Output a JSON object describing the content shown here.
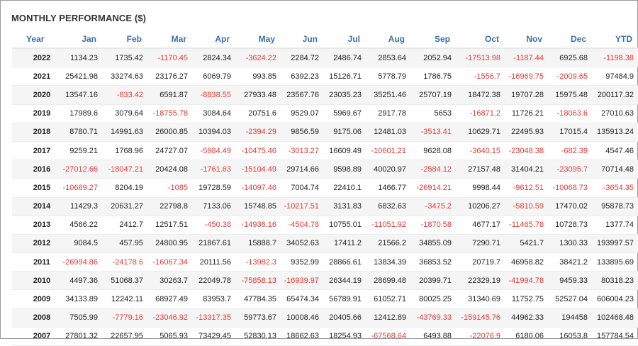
{
  "title": "MONTHLY PERFORMANCE ($)",
  "colors": {
    "negative": "#e53935",
    "header": "#3a6fb0"
  },
  "columns": [
    "Year",
    "Jan",
    "Feb",
    "Mar",
    "Apr",
    "May",
    "Jun",
    "Jul",
    "Aug",
    "Sep",
    "Oct",
    "Nov",
    "Dec",
    "YTD"
  ],
  "rows": [
    [
      "2022",
      "1134.23",
      "1735.42",
      "-1170.45",
      "2824.34",
      "-3624.22",
      "2284.72",
      "2486.74",
      "2853.64",
      "2052.94",
      "-17513.98",
      "-1187.44",
      "6925.68",
      "-1198.38"
    ],
    [
      "2021",
      "25421.98",
      "33274.63",
      "23176.27",
      "6069.79",
      "993.85",
      "6392.23",
      "15126.71",
      "5778.79",
      "1786.75",
      "-1556.7",
      "-16969.75",
      "-2009.65",
      "97484.9"
    ],
    [
      "2020",
      "13547.16",
      "-833.42",
      "6591.87",
      "-8838.55",
      "27933.48",
      "23567.76",
      "23035.23",
      "35251.46",
      "25707.19",
      "18472.38",
      "19707.28",
      "15975.48",
      "200117.32"
    ],
    [
      "2019",
      "17989.6",
      "3079.64",
      "-18755.78",
      "3084.64",
      "20751.6",
      "9529.07",
      "5969.67",
      "2917.78",
      "5653",
      "-16871.2",
      "11726.21",
      "-18063.6",
      "27010.63"
    ],
    [
      "2018",
      "8780.71",
      "14991.63",
      "26000.85",
      "10394.03",
      "-2394.29",
      "9856.59",
      "9175.06",
      "12481.03",
      "-3513.41",
      "10629.71",
      "22495.93",
      "17015.4",
      "135913.24"
    ],
    [
      "2017",
      "9259.21",
      "1768.96",
      "24727.07",
      "-5984.49",
      "-10475.46",
      "-3013.27",
      "16609.49",
      "-10601.21",
      "9628.08",
      "-3640.15",
      "-23048.38",
      "-682.39",
      "4547.46"
    ],
    [
      "2016",
      "-27012.66",
      "-18047.21",
      "20424.08",
      "-1761.63",
      "-15104.49",
      "29714.66",
      "9598.89",
      "40020.97",
      "-2584.12",
      "27157.48",
      "31404.21",
      "-23095.7",
      "70714.48"
    ],
    [
      "2015",
      "-10689.27",
      "8204.19",
      "-1085",
      "19728.59",
      "-14097.46",
      "7004.74",
      "22410.1",
      "1466.77",
      "-26914.21",
      "9998.44",
      "-9612.51",
      "-10068.73",
      "-3654.35"
    ],
    [
      "2014",
      "11429.3",
      "20631.27",
      "22798.8",
      "7133.06",
      "15748.85",
      "-10217.51",
      "3131.83",
      "6832.63",
      "-3475.2",
      "10206.27",
      "-5810.59",
      "17470.02",
      "95878.73"
    ],
    [
      "2013",
      "4566.22",
      "2412.7",
      "12517.51",
      "-450.38",
      "-14936.16",
      "-4504.78",
      "10755.01",
      "-11051.92",
      "-1870.58",
      "4677.17",
      "-11465.78",
      "10728.73",
      "1377.74"
    ],
    [
      "2012",
      "9084.5",
      "457.95",
      "24800.95",
      "21867.61",
      "15888.7",
      "34052.63",
      "17411.2",
      "21566.2",
      "34855.09",
      "7290.71",
      "5421.7",
      "1300.33",
      "193997.57"
    ],
    [
      "2011",
      "-26994.86",
      "-24178.6",
      "-16067.34",
      "20111.56",
      "-13982.3",
      "9352.99",
      "28866.61",
      "13834.39",
      "36853.52",
      "20719.7",
      "46958.82",
      "38421.2",
      "133895.69"
    ],
    [
      "2010",
      "4497.36",
      "51068.37",
      "30263.7",
      "22049.78",
      "-75858.13",
      "-16939.97",
      "26344.19",
      "28699.48",
      "20399.71",
      "22329.19",
      "-41994.78",
      "9459.33",
      "80318.23"
    ],
    [
      "2009",
      "34133.89",
      "12242.11",
      "68927.49",
      "83953.7",
      "47784.35",
      "65474.34",
      "56789.91",
      "61052.71",
      "80025.25",
      "31340.69",
      "11752.75",
      "52527.04",
      "606004.23"
    ],
    [
      "2008",
      "7505.99",
      "-7779.16",
      "-23046.92",
      "-13317.35",
      "59773.67",
      "10008.46",
      "20405.66",
      "12412.89",
      "-43769.33",
      "-159145.76",
      "44962.33",
      "194458",
      "102468.48"
    ],
    [
      "2007",
      "27801.32",
      "22657.95",
      "5065.93",
      "73429.45",
      "52830.13",
      "18662.63",
      "18254.93",
      "-67568.64",
      "6493.88",
      "-22076.9",
      "6180.06",
      "16053.8",
      "157784.54"
    ]
  ]
}
